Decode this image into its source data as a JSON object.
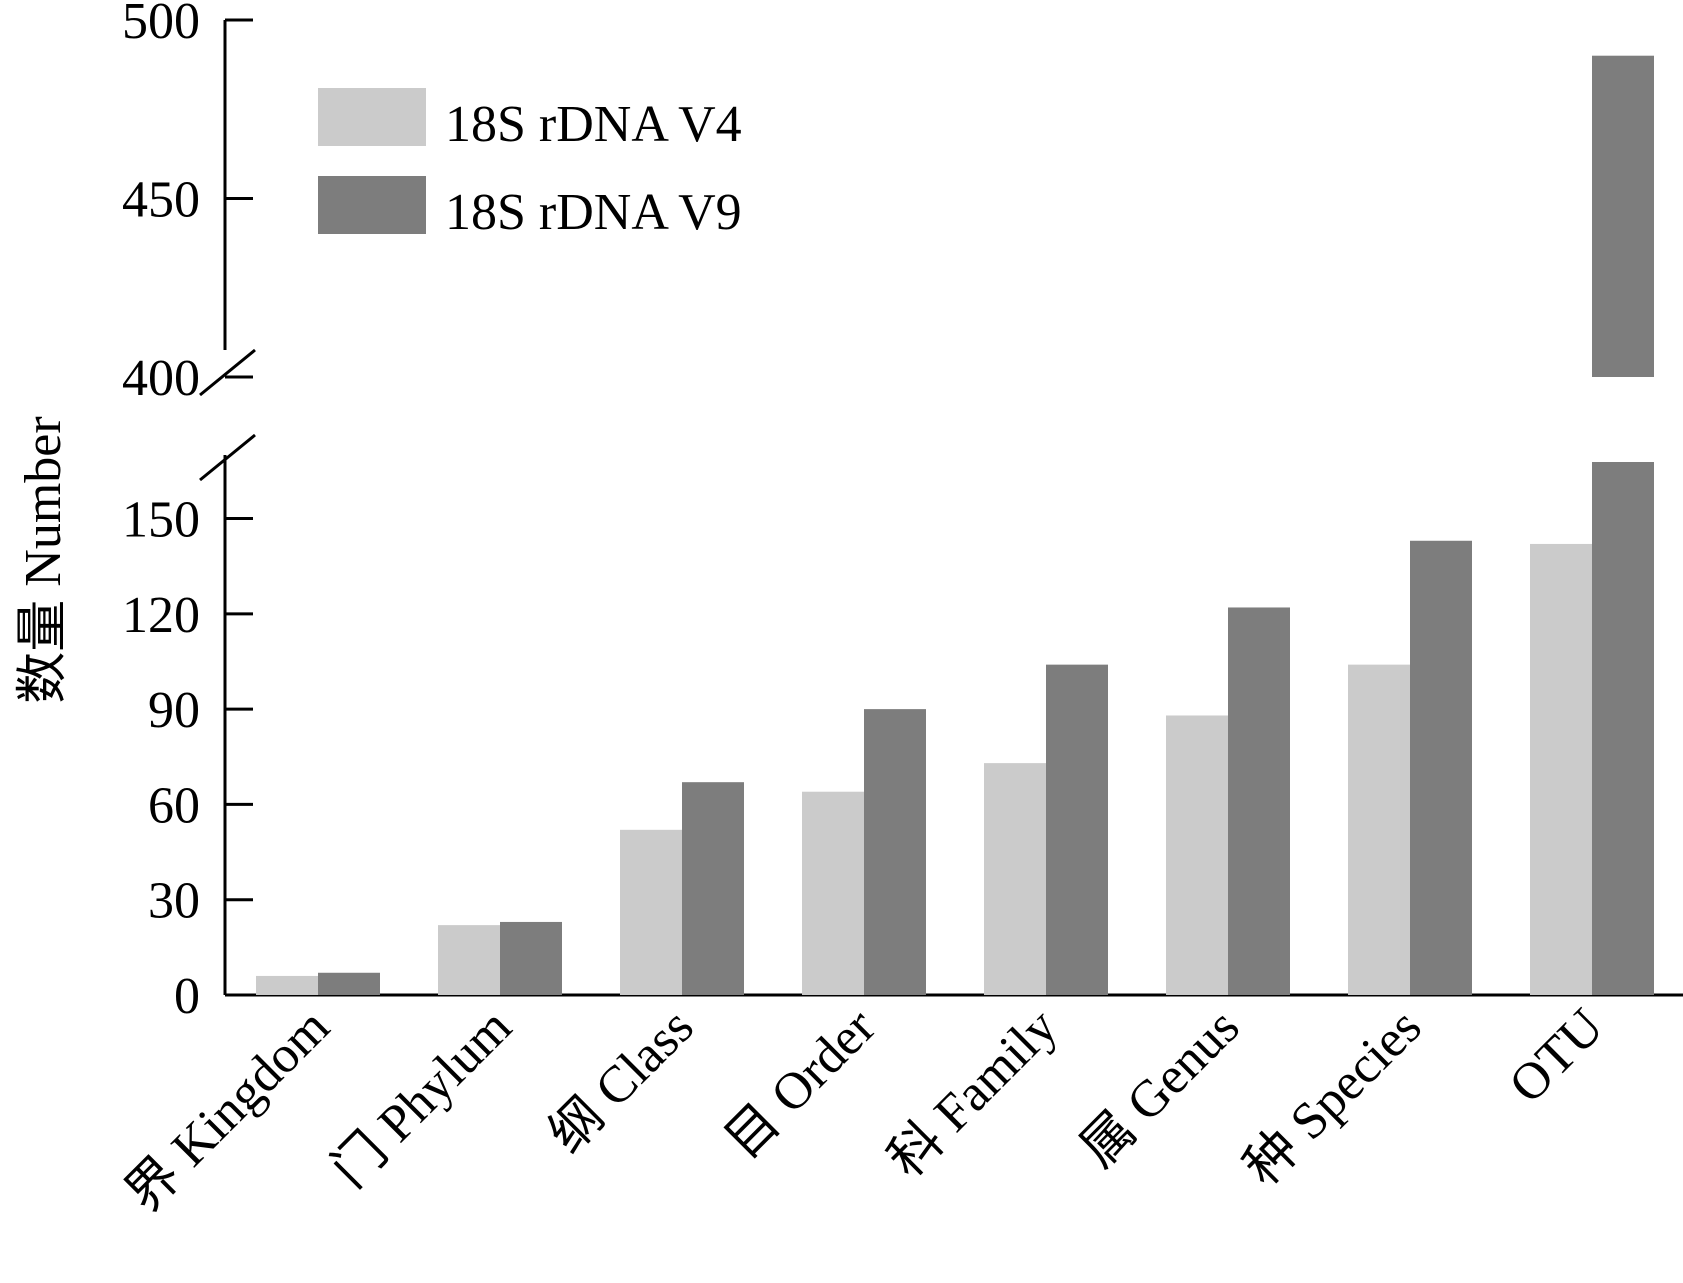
{
  "chart_data": {
    "type": "bar",
    "ylabel": "数量 Number",
    "categories": [
      "界 Kingdom",
      "门 Phylum",
      "纲 Class",
      "目 Order",
      "科 Family",
      "属 Genus",
      "种 Species",
      "OTU"
    ],
    "series": [
      {
        "name": "18S rDNA V4",
        "values": [
          6,
          22,
          52,
          64,
          73,
          88,
          104,
          142
        ]
      },
      {
        "name": "18S rDNA V9",
        "values": [
          7,
          23,
          67,
          90,
          104,
          122,
          143,
          490
        ]
      }
    ],
    "y_axis_broken": true,
    "lower_segment": {
      "ylim": [
        0,
        170
      ],
      "ticks": [
        0,
        30,
        60,
        90,
        120,
        150
      ]
    },
    "upper_segment": {
      "ylim": [
        400,
        500
      ],
      "ticks": [
        400,
        450,
        500
      ]
    },
    "legend_placement": "top-left",
    "grid": false,
    "colors": {
      "18S rDNA V4": "#cbcbcb",
      "18S rDNA V9": "#7d7d7d"
    }
  }
}
